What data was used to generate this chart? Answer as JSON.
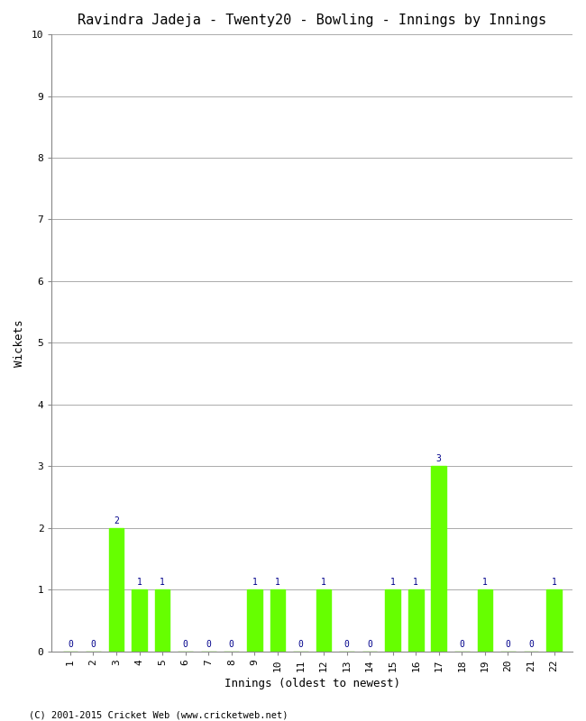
{
  "title": "Ravindra Jadeja - Twenty20 - Bowling - Innings by Innings",
  "xlabel": "Innings (oldest to newest)",
  "ylabel": "Wickets",
  "innings": [
    1,
    2,
    3,
    4,
    5,
    6,
    7,
    8,
    9,
    10,
    11,
    12,
    13,
    14,
    15,
    16,
    17,
    18,
    19,
    20,
    21,
    22
  ],
  "wickets": [
    0,
    0,
    2,
    1,
    1,
    0,
    0,
    0,
    1,
    1,
    0,
    1,
    0,
    0,
    1,
    1,
    3,
    0,
    1,
    0,
    0,
    1
  ],
  "bar_color": "#66ff00",
  "label_color": "#00008B",
  "ylim": [
    0,
    10
  ],
  "yticks": [
    0,
    1,
    2,
    3,
    4,
    5,
    6,
    7,
    8,
    9,
    10
  ],
  "background_color": "#ffffff",
  "grid_color": "#aaaaaa",
  "title_fontsize": 11,
  "axis_label_fontsize": 9,
  "tick_label_fontsize": 8,
  "bar_label_fontsize": 7,
  "footer": "(C) 2001-2015 Cricket Web (www.cricketweb.net)"
}
